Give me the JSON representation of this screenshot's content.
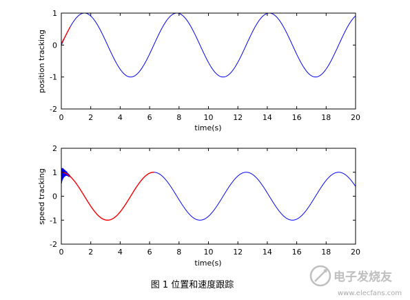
{
  "chart_data": [
    {
      "type": "line",
      "xlabel": "time(s)",
      "ylabel": "position tracking",
      "xlim": [
        0,
        20
      ],
      "ylim": [
        -2,
        1
      ],
      "xticks": [
        "0",
        "2",
        "4",
        "6",
        "8",
        "10",
        "12",
        "14",
        "16",
        "18",
        "20"
      ],
      "yticks": [
        "-2",
        "-1",
        "0",
        "1"
      ],
      "grid": false,
      "legend": "none",
      "series": [
        {
          "color": "#0000ff",
          "formula": "sin(t)",
          "x": [
            0,
            1.571,
            3.142,
            4.712,
            6.283,
            7.854,
            9.425,
            10.996,
            12.566,
            14.137,
            15.708,
            17.279,
            18.85,
            20
          ],
          "y": [
            0,
            1,
            0,
            -1,
            0,
            1,
            0,
            -1,
            0,
            1,
            0,
            -1,
            0,
            0.913
          ]
        },
        {
          "color": "#ff0000",
          "formula": "sin(t) with initial error",
          "x": [
            0,
            0.2,
            0.5
          ],
          "y": [
            0.05,
            0.2,
            0.48
          ]
        }
      ]
    },
    {
      "type": "line",
      "xlabel": "time(s)",
      "ylabel": "speed tracking",
      "xlim": [
        0,
        20
      ],
      "ylim": [
        -2,
        2
      ],
      "xticks": [
        "0",
        "2",
        "4",
        "6",
        "8",
        "10",
        "12",
        "14",
        "16",
        "18",
        "20"
      ],
      "yticks": [
        "-2",
        "-1",
        "0",
        "1",
        "2"
      ],
      "grid": false,
      "legend": "none",
      "series": [
        {
          "color": "#0000ff",
          "formula": "cos(t) with oscillation near t=0",
          "x": [
            0,
            3.142,
            6.283,
            9.425,
            12.566,
            15.708,
            18.85,
            20
          ],
          "y": [
            1,
            -1,
            1,
            -1,
            1,
            -1,
            1,
            0.408
          ]
        },
        {
          "color": "#ff0000",
          "formula": "cos(t)",
          "x": [
            0,
            3.142,
            6.283
          ],
          "y": [
            1,
            -1,
            1
          ]
        }
      ]
    }
  ],
  "caption": "图 1  位置和速度跟踪",
  "watermark": {
    "brand": "电子发烧友",
    "url": "www.elecfans.com"
  }
}
